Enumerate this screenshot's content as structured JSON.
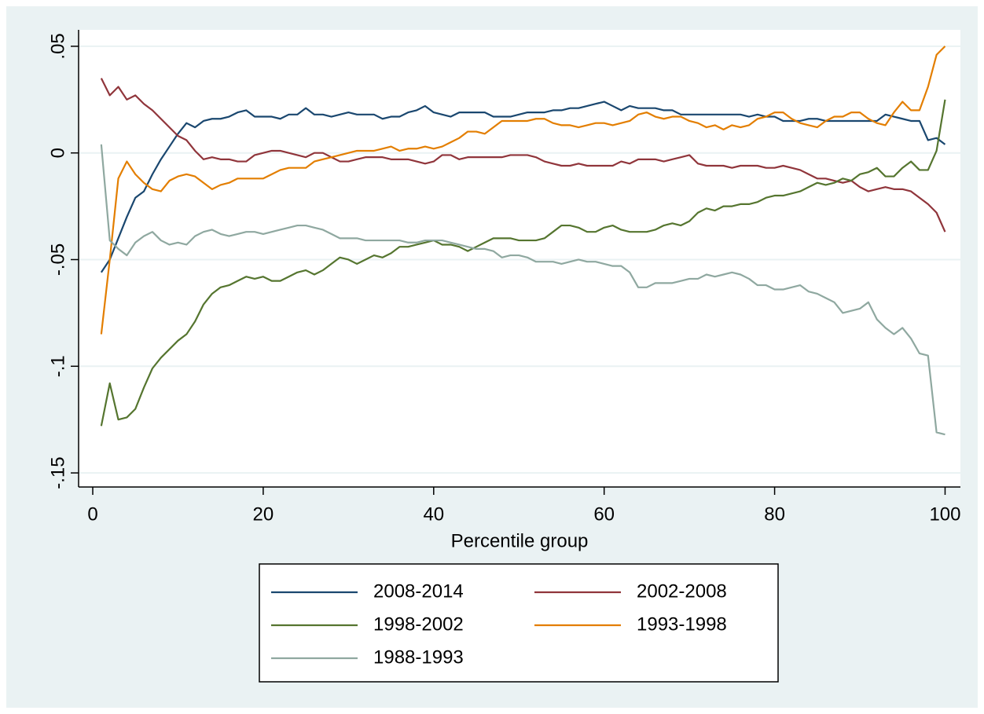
{
  "chart_data": {
    "type": "line",
    "x_label": "Percentile group",
    "x": [
      1,
      2,
      3,
      4,
      5,
      6,
      7,
      8,
      9,
      10,
      11,
      12,
      13,
      14,
      15,
      16,
      17,
      18,
      19,
      20,
      21,
      22,
      23,
      24,
      25,
      26,
      27,
      28,
      29,
      30,
      31,
      32,
      33,
      34,
      35,
      36,
      37,
      38,
      39,
      40,
      41,
      42,
      43,
      44,
      45,
      46,
      47,
      48,
      49,
      50,
      51,
      52,
      53,
      54,
      55,
      56,
      57,
      58,
      59,
      60,
      61,
      62,
      63,
      64,
      65,
      66,
      67,
      68,
      69,
      70,
      71,
      72,
      73,
      74,
      75,
      76,
      77,
      78,
      79,
      80,
      81,
      82,
      83,
      84,
      85,
      86,
      87,
      88,
      89,
      90,
      91,
      92,
      93,
      94,
      95,
      96,
      97,
      98,
      99,
      100
    ],
    "series": [
      {
        "name": "2008-2014",
        "color": "#1a476f",
        "values": [
          -0.056,
          -0.05,
          -0.04,
          -0.03,
          -0.021,
          -0.018,
          -0.01,
          -0.003,
          0.003,
          0.009,
          0.014,
          0.012,
          0.015,
          0.016,
          0.016,
          0.017,
          0.019,
          0.02,
          0.017,
          0.017,
          0.017,
          0.016,
          0.018,
          0.018,
          0.021,
          0.018,
          0.018,
          0.017,
          0.018,
          0.019,
          0.018,
          0.018,
          0.018,
          0.016,
          0.017,
          0.017,
          0.019,
          0.02,
          0.022,
          0.019,
          0.018,
          0.017,
          0.019,
          0.019,
          0.019,
          0.019,
          0.017,
          0.017,
          0.017,
          0.018,
          0.019,
          0.019,
          0.019,
          0.02,
          0.02,
          0.021,
          0.021,
          0.022,
          0.023,
          0.024,
          0.022,
          0.02,
          0.022,
          0.021,
          0.021,
          0.021,
          0.02,
          0.02,
          0.018,
          0.018,
          0.018,
          0.018,
          0.018,
          0.018,
          0.018,
          0.018,
          0.017,
          0.018,
          0.017,
          0.017,
          0.015,
          0.015,
          0.015,
          0.016,
          0.016,
          0.015,
          0.015,
          0.015,
          0.015,
          0.015,
          0.015,
          0.015,
          0.018,
          0.017,
          0.016,
          0.015,
          0.015,
          0.006,
          0.007,
          0.004
        ]
      },
      {
        "name": "2002-2008",
        "color": "#90353b",
        "values": [
          0.035,
          0.027,
          0.031,
          0.025,
          0.027,
          0.023,
          0.02,
          0.016,
          0.012,
          0.008,
          0.006,
          0.001,
          -0.003,
          -0.002,
          -0.003,
          -0.003,
          -0.004,
          -0.004,
          -0.001,
          0,
          0.001,
          0.001,
          0,
          -0.001,
          -0.002,
          0,
          0,
          -0.002,
          -0.004,
          -0.004,
          -0.003,
          -0.002,
          -0.002,
          -0.002,
          -0.003,
          -0.003,
          -0.003,
          -0.004,
          -0.005,
          -0.004,
          -0.001,
          -0.001,
          -0.003,
          -0.002,
          -0.002,
          -0.002,
          -0.002,
          -0.002,
          -0.001,
          -0.001,
          -0.001,
          -0.002,
          -0.004,
          -0.005,
          -0.006,
          -0.006,
          -0.005,
          -0.006,
          -0.006,
          -0.006,
          -0.006,
          -0.004,
          -0.005,
          -0.003,
          -0.003,
          -0.003,
          -0.004,
          -0.003,
          -0.002,
          -0.001,
          -0.005,
          -0.006,
          -0.006,
          -0.006,
          -0.007,
          -0.006,
          -0.006,
          -0.006,
          -0.007,
          -0.007,
          -0.006,
          -0.007,
          -0.008,
          -0.01,
          -0.012,
          -0.012,
          -0.013,
          -0.014,
          -0.013,
          -0.016,
          -0.018,
          -0.017,
          -0.016,
          -0.017,
          -0.017,
          -0.018,
          -0.021,
          -0.024,
          -0.028,
          -0.037
        ]
      },
      {
        "name": "1998-2002",
        "color": "#55752f",
        "values": [
          -0.128,
          -0.108,
          -0.125,
          -0.124,
          -0.12,
          -0.11,
          -0.101,
          -0.096,
          -0.092,
          -0.088,
          -0.085,
          -0.079,
          -0.071,
          -0.066,
          -0.063,
          -0.062,
          -0.06,
          -0.058,
          -0.059,
          -0.058,
          -0.06,
          -0.06,
          -0.058,
          -0.056,
          -0.055,
          -0.057,
          -0.055,
          -0.052,
          -0.049,
          -0.05,
          -0.052,
          -0.05,
          -0.048,
          -0.049,
          -0.047,
          -0.044,
          -0.044,
          -0.043,
          -0.042,
          -0.041,
          -0.043,
          -0.043,
          -0.044,
          -0.046,
          -0.044,
          -0.042,
          -0.04,
          -0.04,
          -0.04,
          -0.041,
          -0.041,
          -0.041,
          -0.04,
          -0.037,
          -0.034,
          -0.034,
          -0.035,
          -0.037,
          -0.037,
          -0.035,
          -0.034,
          -0.036,
          -0.037,
          -0.037,
          -0.037,
          -0.036,
          -0.034,
          -0.033,
          -0.034,
          -0.032,
          -0.028,
          -0.026,
          -0.027,
          -0.025,
          -0.025,
          -0.024,
          -0.024,
          -0.023,
          -0.021,
          -0.02,
          -0.02,
          -0.019,
          -0.018,
          -0.016,
          -0.014,
          -0.015,
          -0.014,
          -0.012,
          -0.013,
          -0.01,
          -0.009,
          -0.007,
          -0.011,
          -0.011,
          -0.007,
          -0.004,
          -0.008,
          -0.008,
          0.001,
          0.025
        ]
      },
      {
        "name": "1993-1998",
        "color": "#e37e00",
        "values": [
          -0.085,
          -0.05,
          -0.012,
          -0.004,
          -0.01,
          -0.014,
          -0.017,
          -0.018,
          -0.013,
          -0.011,
          -0.01,
          -0.011,
          -0.014,
          -0.017,
          -0.015,
          -0.014,
          -0.012,
          -0.012,
          -0.012,
          -0.012,
          -0.01,
          -0.008,
          -0.007,
          -0.007,
          -0.007,
          -0.004,
          -0.003,
          -0.002,
          -0.001,
          0,
          0.001,
          0.001,
          0.001,
          0.002,
          0.003,
          0.001,
          0.002,
          0.002,
          0.003,
          0.002,
          0.003,
          0.005,
          0.007,
          0.01,
          0.01,
          0.009,
          0.012,
          0.015,
          0.015,
          0.015,
          0.015,
          0.016,
          0.016,
          0.014,
          0.013,
          0.013,
          0.012,
          0.013,
          0.014,
          0.014,
          0.013,
          0.014,
          0.015,
          0.018,
          0.019,
          0.017,
          0.016,
          0.017,
          0.017,
          0.015,
          0.014,
          0.012,
          0.013,
          0.011,
          0.013,
          0.012,
          0.013,
          0.016,
          0.017,
          0.019,
          0.019,
          0.016,
          0.014,
          0.013,
          0.012,
          0.015,
          0.017,
          0.017,
          0.019,
          0.019,
          0.016,
          0.014,
          0.013,
          0.019,
          0.024,
          0.02,
          0.02,
          0.031,
          0.046,
          0.05
        ]
      },
      {
        "name": "1988-1993",
        "color": "#8fa8a0",
        "values": [
          0.004,
          -0.041,
          -0.045,
          -0.048,
          -0.042,
          -0.039,
          -0.037,
          -0.041,
          -0.043,
          -0.042,
          -0.043,
          -0.039,
          -0.037,
          -0.036,
          -0.038,
          -0.039,
          -0.038,
          -0.037,
          -0.037,
          -0.038,
          -0.037,
          -0.036,
          -0.035,
          -0.034,
          -0.034,
          -0.035,
          -0.036,
          -0.038,
          -0.04,
          -0.04,
          -0.04,
          -0.041,
          -0.041,
          -0.041,
          -0.041,
          -0.041,
          -0.042,
          -0.042,
          -0.041,
          -0.041,
          -0.041,
          -0.042,
          -0.043,
          -0.044,
          -0.045,
          -0.045,
          -0.046,
          -0.049,
          -0.048,
          -0.048,
          -0.049,
          -0.051,
          -0.051,
          -0.051,
          -0.052,
          -0.051,
          -0.05,
          -0.051,
          -0.051,
          -0.052,
          -0.053,
          -0.053,
          -0.056,
          -0.063,
          -0.063,
          -0.061,
          -0.061,
          -0.061,
          -0.06,
          -0.059,
          -0.059,
          -0.057,
          -0.058,
          -0.057,
          -0.056,
          -0.057,
          -0.059,
          -0.062,
          -0.062,
          -0.064,
          -0.064,
          -0.063,
          -0.062,
          -0.065,
          -0.066,
          -0.068,
          -0.07,
          -0.075,
          -0.074,
          -0.073,
          -0.07,
          -0.078,
          -0.082,
          -0.085,
          -0.082,
          -0.087,
          -0.094,
          -0.095,
          -0.131,
          -0.132
        ]
      }
    ],
    "xlim": [
      -1.66,
      101.8
    ],
    "ylim": [
      -0.1566,
      0.0577
    ],
    "xticks": [
      0,
      20,
      40,
      60,
      80,
      100
    ],
    "yticks": [
      {
        "value": 0.05,
        "label": ".05"
      },
      0,
      {
        "value": -0.05,
        "label": "-.05"
      },
      {
        "value": -0.1,
        "label": "-.1"
      },
      {
        "value": -0.15,
        "label": "-.15"
      }
    ],
    "grid": true,
    "legend": "bottom"
  }
}
